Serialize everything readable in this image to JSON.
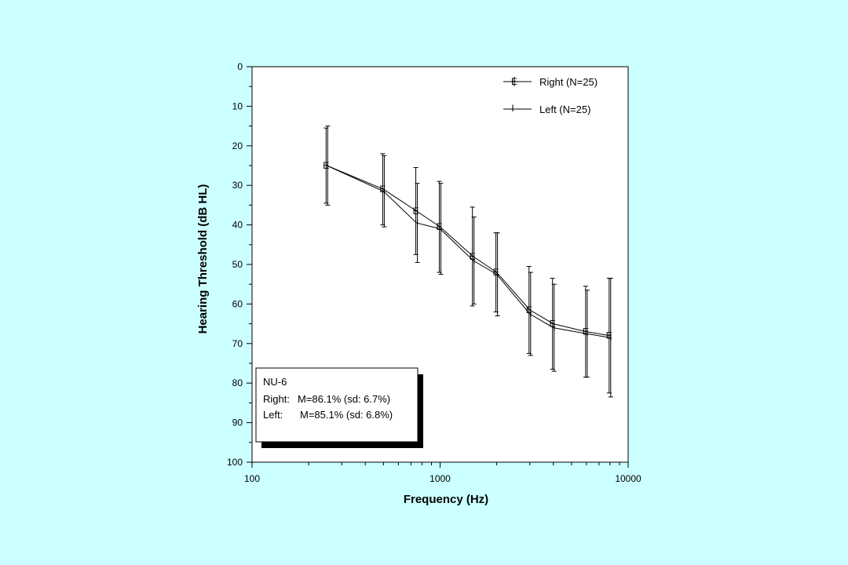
{
  "chart_data": {
    "type": "line",
    "xlabel": "Frequency (Hz)",
    "ylabel": "Hearing Threshold (dB HL)",
    "x_scale": "log",
    "xlim": [
      100,
      10000
    ],
    "ylim": [
      0,
      100
    ],
    "y_inverted": true,
    "x_ticks": [
      "100",
      "1000",
      "10000"
    ],
    "y_ticks": [
      "0",
      "10",
      "20",
      "30",
      "40",
      "50",
      "60",
      "70",
      "80",
      "90",
      "100"
    ],
    "grid": false,
    "legend_position": "top-right",
    "x": [
      250,
      500,
      750,
      1000,
      1500,
      2000,
      3000,
      4000,
      6000,
      8000
    ],
    "series": [
      {
        "name": "Right (N=25)",
        "marker": "E",
        "values": [
          25,
          31,
          36.5,
          40.5,
          48,
          52,
          61.5,
          65,
          67,
          68
        ],
        "error": [
          9.5,
          9,
          11,
          11.5,
          12.5,
          10,
          11,
          11.5,
          11.5,
          14.5
        ]
      },
      {
        "name": "Left (N=25)",
        "marker": "I",
        "values": [
          25,
          31.5,
          39.5,
          41,
          49,
          52.5,
          62.5,
          66,
          67.5,
          68.5
        ],
        "error": [
          10,
          9,
          10,
          11.5,
          11,
          10.5,
          10.5,
          11,
          11,
          15
        ]
      }
    ]
  },
  "note": {
    "title": "NU-6",
    "right_label": "Right:",
    "right_value": "M=86.1% (sd: 6.7%)",
    "left_label": "Left:",
    "left_value": "M=85.1% (sd: 6.8%)"
  },
  "colors": {
    "background": "#ccffff",
    "plot_background": "#ffffff",
    "ink": "#000000"
  }
}
